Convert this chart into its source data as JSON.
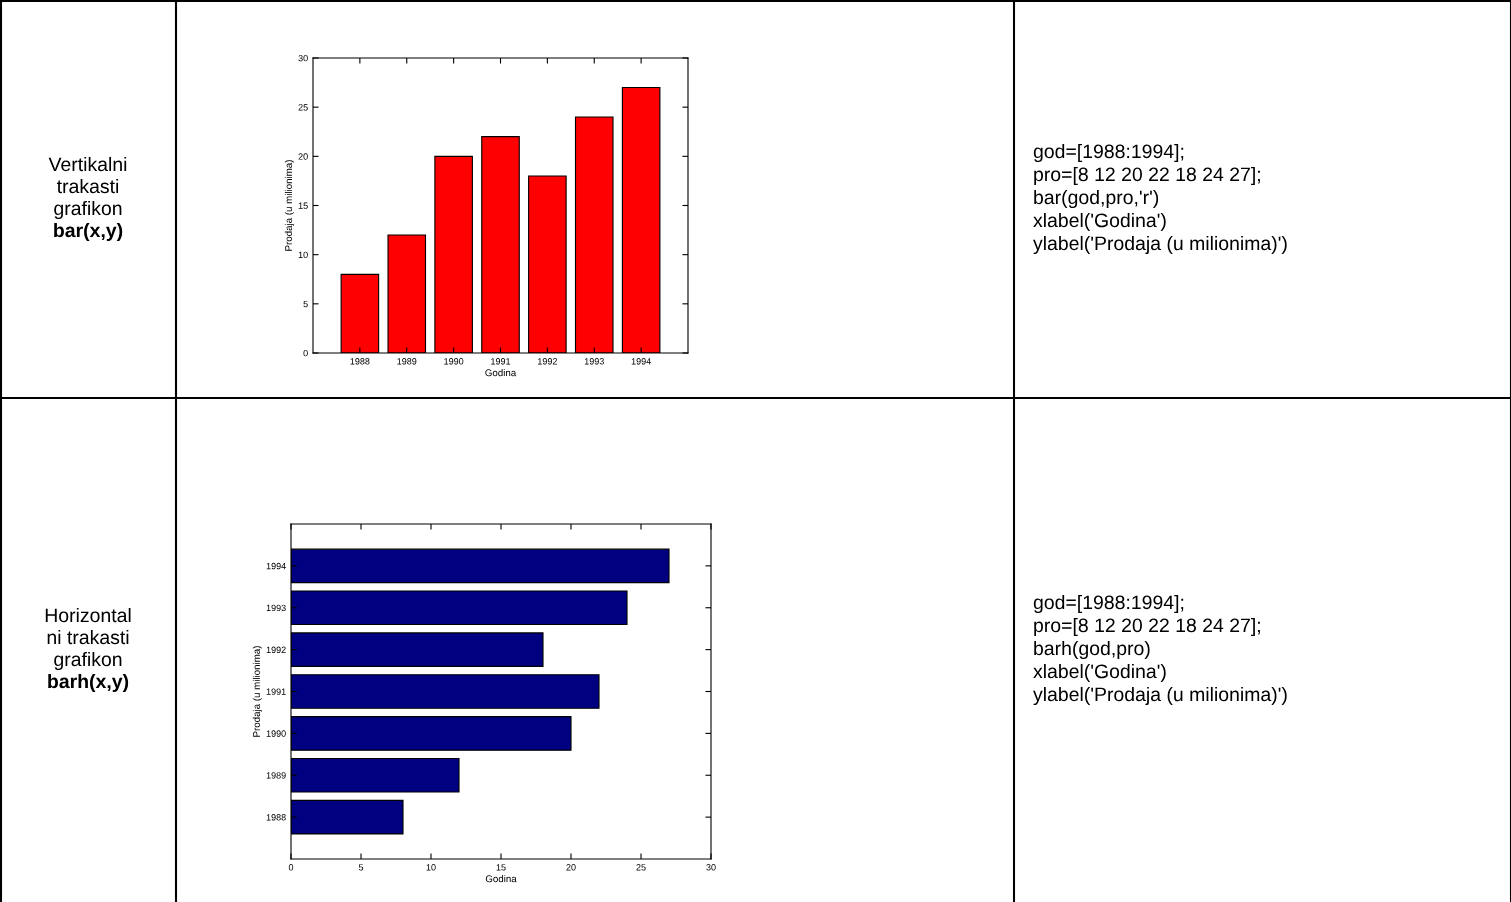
{
  "chart_data": [
    {
      "type": "other",
      "annotations": [
        "Vertikalni",
        "trakasti",
        "grafikon",
        "bar(x,y)"
      ]
    },
    {
      "type": "bar",
      "xlabel": "Godina",
      "ylabel": "Prodaja (u milionima)",
      "categories": [
        "1988",
        "1989",
        "1990",
        "1991",
        "1992",
        "1993",
        "1994"
      ],
      "values": [
        8,
        12,
        20,
        22,
        18,
        24,
        27
      ],
      "color": "#ff0000",
      "ylim": [
        0,
        30
      ],
      "yticks": [
        0,
        5,
        10,
        15,
        20,
        25,
        30
      ]
    },
    {
      "type": "other",
      "annotations": [
        "god=[1988:1994];",
        "pro=[8 12 20 22 18 24 27];",
        "bar(god,pro,'r')",
        "xlabel('Godina')",
        "ylabel('Prodaja (u milionima)')"
      ]
    },
    {
      "type": "other",
      "annotations": [
        "Horizontal",
        "ni trakasti",
        "grafikon",
        "barh(x,y)"
      ]
    },
    {
      "type": "bar",
      "orientation": "horizontal",
      "xlabel": "Godina",
      "ylabel": "Prodaja (u milionima)",
      "categories": [
        "1994",
        "1993",
        "1992",
        "1991",
        "1990",
        "1989",
        "1988"
      ],
      "values": [
        27,
        24,
        18,
        22,
        20,
        12,
        8
      ],
      "color": "#000080",
      "xlim": [
        0,
        30
      ],
      "xticks": [
        0,
        5,
        10,
        15,
        20,
        25,
        30
      ]
    },
    {
      "type": "other",
      "annotations": [
        "god=[1988:1994];",
        "pro=[8 12 20 22 18 24 27];",
        "barh(god,pro)",
        "xlabel('Godina')",
        "ylabel('Prodaja (u milionima)')"
      ]
    }
  ]
}
